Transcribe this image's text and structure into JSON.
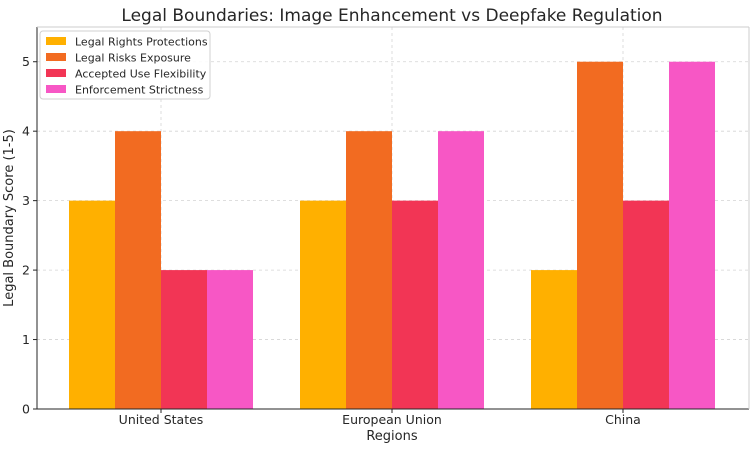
{
  "chart_data": {
    "type": "bar",
    "title": "Legal Boundaries: Image Enhancement vs Deepfake Regulation",
    "xlabel": "Regions",
    "ylabel": "Legal Boundary Score (1-5)",
    "categories": [
      "United States",
      "European Union",
      "China"
    ],
    "ylim": [
      0,
      5.5
    ],
    "yticks": [
      0,
      1,
      2,
      3,
      4,
      5
    ],
    "grid": true,
    "legend_position": "top-left",
    "series": [
      {
        "name": "Legal Rights Protections",
        "color": "#FFB000",
        "values": [
          3,
          3,
          2
        ]
      },
      {
        "name": "Legal Risks Exposure",
        "color": "#F26B21",
        "values": [
          4,
          4,
          5
        ]
      },
      {
        "name": "Accepted Use Flexibility",
        "color": "#F23555",
        "values": [
          2,
          3,
          3
        ]
      },
      {
        "name": "Enforcement Strictness",
        "color": "#F757C5",
        "values": [
          2,
          4,
          5
        ]
      }
    ]
  }
}
